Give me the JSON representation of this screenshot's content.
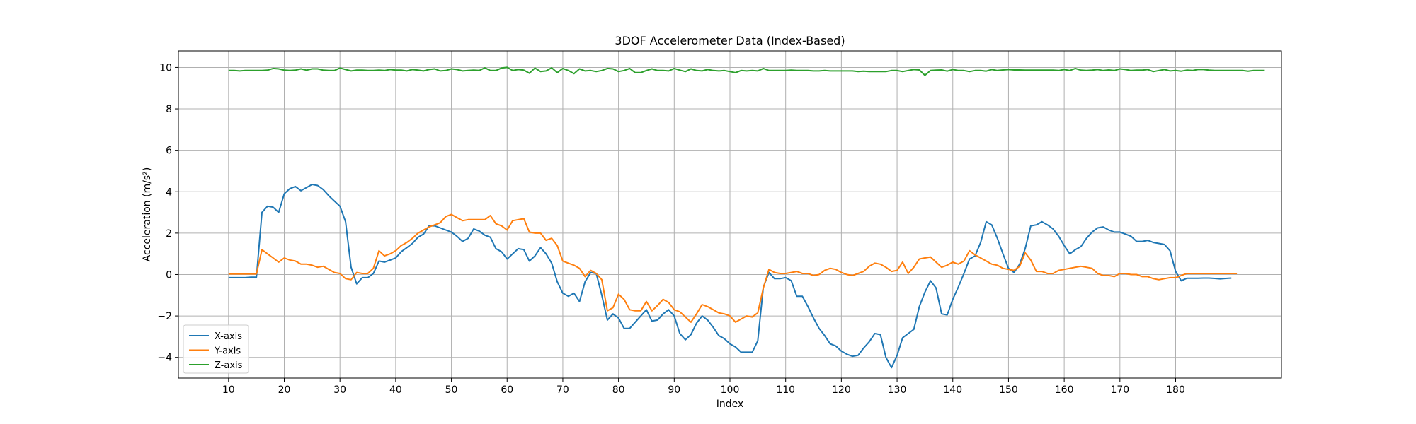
{
  "chart_data": {
    "type": "line",
    "title": "3DOF Accelerometer Data (Index-Based)",
    "xlabel": "Index",
    "ylabel": "Acceleration (m/s²)",
    "xlim": [
      1,
      199
    ],
    "ylim": [
      -5,
      10.8
    ],
    "xticks": [
      10,
      20,
      30,
      40,
      50,
      60,
      70,
      80,
      90,
      100,
      110,
      120,
      130,
      140,
      150,
      160,
      170,
      180
    ],
    "yticks": [
      -4,
      -2,
      0,
      2,
      4,
      6,
      8,
      10
    ],
    "grid": true,
    "legend_position": "lower-left",
    "x_start": 10,
    "series": [
      {
        "name": "X-axis",
        "color": "#1f77b4",
        "values": [
          -0.15,
          -0.15,
          -0.15,
          -0.15,
          -0.13,
          -0.13,
          3.0,
          3.3,
          3.25,
          3.0,
          3.9,
          4.15,
          4.25,
          4.05,
          4.2,
          4.35,
          4.3,
          4.1,
          3.8,
          3.55,
          3.3,
          2.55,
          0.35,
          -0.45,
          -0.15,
          -0.15,
          0.05,
          0.65,
          0.6,
          0.7,
          0.8,
          1.1,
          1.3,
          1.5,
          1.8,
          1.95,
          2.35,
          2.35,
          2.25,
          2.15,
          2.05,
          1.85,
          1.6,
          1.75,
          2.2,
          2.1,
          1.9,
          1.8,
          1.25,
          1.1,
          0.75,
          1.0,
          1.25,
          1.2,
          0.65,
          0.9,
          1.3,
          1.0,
          0.55,
          -0.35,
          -0.9,
          -1.05,
          -0.9,
          -1.3,
          -0.35,
          0.1,
          0.05,
          -1.0,
          -2.2,
          -1.9,
          -2.1,
          -2.6,
          -2.6,
          -2.3,
          -2.0,
          -1.7,
          -2.25,
          -2.2,
          -1.9,
          -1.7,
          -2.0,
          -2.85,
          -3.15,
          -2.9,
          -2.35,
          -2.0,
          -2.2,
          -2.55,
          -2.95,
          -3.1,
          -3.35,
          -3.5,
          -3.75,
          -3.75,
          -3.75,
          -3.2,
          -0.6,
          0.1,
          -0.2,
          -0.2,
          -0.15,
          -0.3,
          -1.05,
          -1.05,
          -1.55,
          -2.1,
          -2.6,
          -2.95,
          -3.35,
          -3.45,
          -3.7,
          -3.85,
          -3.95,
          -3.9,
          -3.55,
          -3.25,
          -2.85,
          -2.9,
          -4.0,
          -4.5,
          -3.9,
          -3.05,
          -2.85,
          -2.65,
          -1.55,
          -0.85,
          -0.3,
          -0.65,
          -1.9,
          -1.95,
          -1.2,
          -0.6,
          0.05,
          0.75,
          0.9,
          1.55,
          2.55,
          2.4,
          1.75,
          1.0,
          0.3,
          0.1,
          0.5,
          1.25,
          2.35,
          2.4,
          2.55,
          2.4,
          2.2,
          1.85,
          1.4,
          1.0,
          1.2,
          1.35,
          1.75,
          2.05,
          2.25,
          2.3,
          2.15,
          2.05,
          2.05,
          1.95,
          1.85,
          1.6,
          1.6,
          1.65,
          1.55,
          1.5,
          1.45,
          1.15,
          0.15,
          -0.3,
          -0.18,
          -0.18,
          -0.18,
          -0.17,
          -0.17,
          -0.19,
          -0.21,
          -0.19,
          -0.17
        ]
      },
      {
        "name": "Y-axis",
        "color": "#ff7f0e",
        "values": [
          0.03,
          0.03,
          0.03,
          0.03,
          0.03,
          0.03,
          1.2,
          1.0,
          0.8,
          0.6,
          0.8,
          0.7,
          0.65,
          0.5,
          0.5,
          0.45,
          0.35,
          0.4,
          0.25,
          0.1,
          0.05,
          -0.2,
          -0.25,
          0.1,
          0.05,
          0.05,
          0.3,
          1.15,
          0.9,
          1.0,
          1.15,
          1.4,
          1.55,
          1.75,
          2.0,
          2.15,
          2.3,
          2.4,
          2.5,
          2.8,
          2.9,
          2.75,
          2.6,
          2.65,
          2.65,
          2.65,
          2.65,
          2.85,
          2.45,
          2.35,
          2.15,
          2.6,
          2.65,
          2.7,
          2.05,
          2.0,
          2.0,
          1.65,
          1.75,
          1.4,
          0.65,
          0.55,
          0.45,
          0.3,
          -0.1,
          0.2,
          0.05,
          -0.25,
          -1.75,
          -1.6,
          -0.95,
          -1.2,
          -1.7,
          -1.75,
          -1.75,
          -1.3,
          -1.75,
          -1.5,
          -1.2,
          -1.35,
          -1.7,
          -1.8,
          -2.05,
          -2.3,
          -1.9,
          -1.45,
          -1.55,
          -1.7,
          -1.85,
          -1.9,
          -2.0,
          -2.3,
          -2.15,
          -2.0,
          -2.05,
          -1.85,
          -0.65,
          0.25,
          0.1,
          0.05,
          0.05,
          0.1,
          0.15,
          0.05,
          0.05,
          -0.05,
          0.0,
          0.2,
          0.3,
          0.25,
          0.1,
          0.0,
          -0.05,
          0.05,
          0.15,
          0.4,
          0.55,
          0.5,
          0.35,
          0.15,
          0.2,
          0.6,
          0.05,
          0.35,
          0.75,
          0.8,
          0.85,
          0.6,
          0.35,
          0.45,
          0.6,
          0.5,
          0.65,
          1.15,
          0.95,
          0.8,
          0.65,
          0.5,
          0.45,
          0.3,
          0.25,
          0.2,
          0.4,
          1.05,
          0.7,
          0.15,
          0.15,
          0.05,
          0.05,
          0.2,
          0.25,
          0.3,
          0.35,
          0.4,
          0.35,
          0.3,
          0.05,
          -0.05,
          -0.05,
          -0.1,
          0.05,
          0.05,
          0.0,
          0.0,
          -0.1,
          -0.1,
          -0.2,
          -0.25,
          -0.2,
          -0.15,
          -0.15,
          -0.05,
          0.05,
          0.05,
          0.05,
          0.05,
          0.05,
          0.05,
          0.05,
          0.05,
          0.05,
          0.05
        ]
      },
      {
        "name": "Z-axis",
        "color": "#2ca02c",
        "values": [
          9.85,
          9.85,
          9.83,
          9.85,
          9.85,
          9.85,
          9.85,
          9.87,
          9.95,
          9.93,
          9.87,
          9.85,
          9.87,
          9.93,
          9.87,
          9.93,
          9.93,
          9.87,
          9.85,
          9.85,
          9.97,
          9.9,
          9.83,
          9.87,
          9.87,
          9.85,
          9.85,
          9.87,
          9.85,
          9.9,
          9.87,
          9.87,
          9.83,
          9.9,
          9.87,
          9.83,
          9.9,
          9.93,
          9.83,
          9.85,
          9.93,
          9.9,
          9.83,
          9.85,
          9.87,
          9.85,
          9.98,
          9.85,
          9.85,
          9.97,
          10.0,
          9.85,
          9.9,
          9.87,
          9.72,
          9.97,
          9.8,
          9.83,
          9.98,
          9.75,
          9.95,
          9.85,
          9.7,
          9.93,
          9.83,
          9.85,
          9.8,
          9.85,
          9.95,
          9.93,
          9.8,
          9.85,
          9.95,
          9.75,
          9.75,
          9.85,
          9.93,
          9.85,
          9.85,
          9.83,
          9.95,
          9.87,
          9.8,
          9.93,
          9.85,
          9.83,
          9.9,
          9.85,
          9.83,
          9.85,
          9.8,
          9.75,
          9.85,
          9.83,
          9.85,
          9.83,
          9.95,
          9.85,
          9.85,
          9.85,
          9.85,
          9.87,
          9.85,
          9.85,
          9.85,
          9.83,
          9.83,
          9.85,
          9.83,
          9.83,
          9.83,
          9.83,
          9.83,
          9.8,
          9.82,
          9.8,
          9.8,
          9.8,
          9.8,
          9.85,
          9.85,
          9.8,
          9.85,
          9.9,
          9.88,
          9.62,
          9.85,
          9.87,
          9.88,
          9.82,
          9.9,
          9.85,
          9.85,
          9.8,
          9.85,
          9.85,
          9.82,
          9.9,
          9.85,
          9.88,
          9.9,
          9.88,
          9.88,
          9.87,
          9.87,
          9.87,
          9.87,
          9.87,
          9.87,
          9.85,
          9.9,
          9.85,
          9.95,
          9.87,
          9.85,
          9.87,
          9.9,
          9.85,
          9.88,
          9.85,
          9.93,
          9.9,
          9.85,
          9.87,
          9.87,
          9.9,
          9.8,
          9.85,
          9.9,
          9.83,
          9.85,
          9.82,
          9.87,
          9.85,
          9.9,
          9.9,
          9.87,
          9.85,
          9.85,
          9.85,
          9.85,
          9.85,
          9.85,
          9.82,
          9.85,
          9.85,
          9.85
        ]
      }
    ]
  }
}
